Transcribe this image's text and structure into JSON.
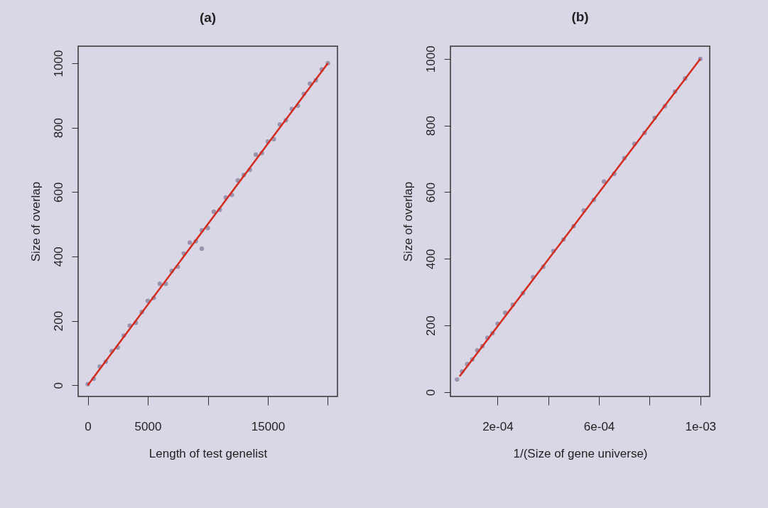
{
  "chart_data": [
    {
      "type": "scatter",
      "title": "(a)",
      "xlabel": "Length of test genelist",
      "ylabel": "Size of overlap",
      "xlim": [
        -800,
        20800
      ],
      "ylim": [
        -35,
        1053
      ],
      "xticks": [
        0,
        5000,
        {
          "value": 10000,
          "label": null
        },
        15000,
        {
          "value": 20000,
          "label": null
        }
      ],
      "yticks": [
        0,
        200,
        400,
        600,
        800,
        1000
      ],
      "grid": false,
      "marker": "circle",
      "series": [
        {
          "color": "#9b93ad",
          "x": [
            0,
            500,
            1000,
            1500,
            2000,
            2500,
            3000,
            3500,
            4000,
            4500,
            5000,
            5500,
            6000,
            6500,
            7000,
            7500,
            8000,
            8500,
            9000,
            9500,
            10000,
            10500,
            11000,
            11500,
            12000,
            12500,
            13000,
            13500,
            14000,
            14500,
            15000,
            15500,
            16000,
            16500,
            17000,
            17500,
            18000,
            18500,
            19000,
            19500,
            20000,
            9500
          ],
          "values": [
            3,
            20,
            58,
            73,
            106,
            117,
            154,
            185,
            194,
            227,
            262,
            271,
            315,
            315,
            355,
            368,
            409,
            443,
            447,
            481,
            488,
            539,
            545,
            583,
            591,
            636,
            653,
            669,
            716,
            721,
            757,
            764,
            810,
            823,
            858,
            868,
            905,
            937,
            947,
            981,
            1000,
            424
          ]
        },
        {
          "type": "line",
          "color": "#d42a1e",
          "line_style": "solid",
          "marker": "none",
          "x": [
            0,
            20000
          ],
          "values": [
            0,
            1000
          ]
        }
      ]
    },
    {
      "type": "scatter",
      "title": "(b)",
      "xlabel": "1/(Size of gene universe)",
      "ylabel": "Size of overlap",
      "xlim": [
        1.4e-05,
        0.001037
      ],
      "ylim": [
        -13,
        1038
      ],
      "xticks": [
        {
          "value": 0.0002,
          "label": "2e-04"
        },
        {
          "value": 0.0004,
          "label": null
        },
        {
          "value": 0.0006,
          "label": "6e-04"
        },
        {
          "value": 0.0008,
          "label": null
        },
        {
          "value": 0.001,
          "label": "1e-03"
        }
      ],
      "yticks": [
        0,
        200,
        400,
        600,
        800,
        1000
      ],
      "grid": false,
      "marker": "circle",
      "series": [
        {
          "color": "#9b93ad",
          "x": [
            4e-05,
            6e-05,
            8e-05,
            0.0001,
            0.00012,
            0.00014,
            0.00016,
            0.00018,
            0.0002,
            0.00023,
            0.00026,
            0.0003,
            0.00034,
            0.00038,
            0.00042,
            0.00046,
            0.0005,
            0.00054,
            0.00058,
            0.00062,
            0.00066,
            0.0007,
            0.00074,
            0.00078,
            0.00082,
            0.00086,
            0.0009,
            0.00094,
            0.001
          ],
          "values": [
            38,
            62,
            84,
            98,
            125,
            138,
            163,
            177,
            205,
            238,
            262,
            297,
            345,
            376,
            423,
            458,
            498,
            545,
            577,
            632,
            655,
            702,
            745,
            778,
            823,
            858,
            902,
            941,
            1000
          ]
        },
        {
          "type": "line",
          "color": "#d42a1e",
          "line_style": "solid",
          "marker": "none",
          "x": [
            5e-05,
            0.001
          ],
          "values": [
            47,
            1000
          ]
        }
      ]
    }
  ]
}
